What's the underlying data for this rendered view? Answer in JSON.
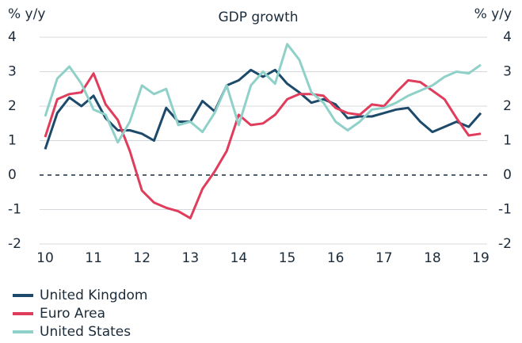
{
  "chart_data": {
    "type": "line",
    "title": "GDP growth",
    "ylabel": "% y/y",
    "y2label": "% y/y",
    "x": [
      10,
      10.25,
      10.5,
      10.75,
      11,
      11.25,
      11.5,
      11.75,
      12,
      12.25,
      12.5,
      12.75,
      13,
      13.25,
      13.5,
      13.75,
      14,
      14.25,
      14.5,
      14.75,
      15,
      15.25,
      15.5,
      15.75,
      16,
      16.25,
      16.5,
      16.75,
      17,
      17.25,
      17.5,
      17.75,
      18,
      18.25,
      18.5,
      18.75,
      19
    ],
    "xlim": [
      10,
      19
    ],
    "xticks": [
      10,
      11,
      12,
      13,
      14,
      15,
      16,
      17,
      18,
      19
    ],
    "ylim": [
      -2,
      4
    ],
    "yticks": [
      -2,
      -1,
      0,
      1,
      2,
      3,
      4
    ],
    "y2lim": [
      -2,
      4
    ],
    "y2ticks": [
      -2,
      -1,
      0,
      1,
      2,
      3,
      4
    ],
    "grid": true,
    "series": [
      {
        "name": "United Kingdom",
        "color": "#1d4a6b",
        "values": [
          0.75,
          1.8,
          2.25,
          2.0,
          2.3,
          1.65,
          1.3,
          1.3,
          1.2,
          1.0,
          1.95,
          1.55,
          1.55,
          2.15,
          1.85,
          2.6,
          2.75,
          3.05,
          2.85,
          3.05,
          2.65,
          2.4,
          2.1,
          2.2,
          2.05,
          1.65,
          1.7,
          1.7,
          1.8,
          1.9,
          1.95,
          1.55,
          1.25,
          1.4,
          1.55,
          1.4,
          1.8
        ]
      },
      {
        "name": "Euro Area",
        "color": "#e03c5c",
        "values": [
          1.1,
          2.2,
          2.35,
          2.4,
          2.95,
          2.05,
          1.6,
          0.7,
          -0.45,
          -0.8,
          -0.95,
          -1.05,
          -1.25,
          -0.4,
          0.1,
          0.7,
          1.75,
          1.45,
          1.5,
          1.75,
          2.2,
          2.35,
          2.35,
          2.3,
          1.95,
          1.8,
          1.75,
          2.05,
          2.0,
          2.4,
          2.75,
          2.7,
          2.45,
          2.2,
          1.65,
          1.15,
          1.2
        ]
      },
      {
        "name": "United States",
        "color": "#8fd1c9",
        "values": [
          1.7,
          2.8,
          3.15,
          2.65,
          1.9,
          1.75,
          0.95,
          1.55,
          2.6,
          2.35,
          2.5,
          1.45,
          1.55,
          1.25,
          1.8,
          2.6,
          1.45,
          2.6,
          3.0,
          2.65,
          3.8,
          3.35,
          2.4,
          2.1,
          1.55,
          1.3,
          1.55,
          1.9,
          1.95,
          2.1,
          2.3,
          2.45,
          2.6,
          2.85,
          3.0,
          2.95,
          3.2
        ]
      }
    ]
  }
}
